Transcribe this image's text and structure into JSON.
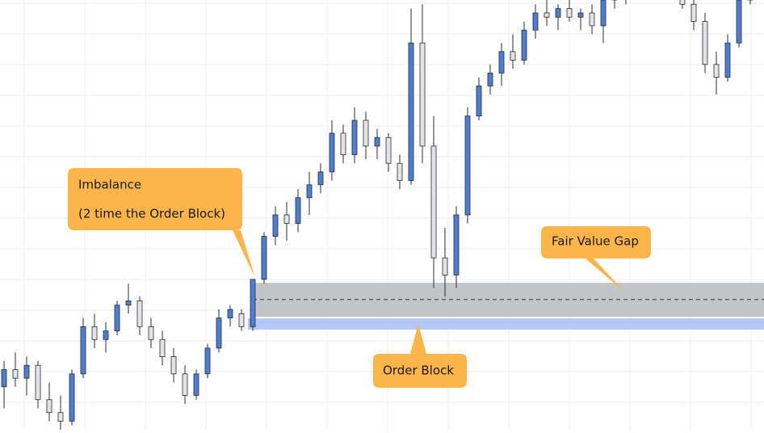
{
  "chart_data": {
    "type": "candlestick",
    "ylim": [
      0,
      100
    ],
    "grid": true,
    "up_color": "#4a7fd4",
    "down_color": "#e4e4e8",
    "candles": [
      [
        10,
        16,
        5,
        14
      ],
      [
        14,
        18,
        10,
        12
      ],
      [
        12,
        17,
        8,
        15
      ],
      [
        15,
        16,
        5,
        7
      ],
      [
        7,
        11,
        2,
        4
      ],
      [
        4,
        8,
        0,
        2
      ],
      [
        2,
        14,
        1,
        13
      ],
      [
        13,
        26,
        12,
        24
      ],
      [
        24,
        27,
        19,
        21
      ],
      [
        21,
        25,
        18,
        23
      ],
      [
        23,
        30,
        22,
        29
      ],
      [
        29,
        34,
        27,
        30
      ],
      [
        30,
        31,
        22,
        24
      ],
      [
        24,
        26,
        19,
        21
      ],
      [
        21,
        23,
        15,
        17
      ],
      [
        17,
        19,
        11,
        13
      ],
      [
        13,
        15,
        6,
        8
      ],
      [
        8,
        14,
        7,
        13
      ],
      [
        13,
        20,
        12,
        19
      ],
      [
        19,
        28,
        18,
        26
      ],
      [
        26,
        29,
        24,
        28
      ],
      [
        27,
        28,
        23,
        24
      ],
      [
        24,
        35,
        23,
        35
      ],
      [
        35,
        46,
        34,
        45
      ],
      [
        45,
        52,
        43,
        50
      ],
      [
        50,
        53,
        44,
        48
      ],
      [
        48,
        56,
        46,
        54
      ],
      [
        54,
        60,
        50,
        57
      ],
      [
        57,
        62,
        55,
        60
      ],
      [
        60,
        72,
        58,
        69
      ],
      [
        69,
        71,
        62,
        64
      ],
      [
        64,
        75,
        62,
        72
      ],
      [
        72,
        74,
        63,
        66
      ],
      [
        66,
        70,
        63,
        68
      ],
      [
        68,
        69,
        60,
        62
      ],
      [
        62,
        64,
        56,
        58
      ],
      [
        58,
        98,
        57,
        90
      ],
      [
        90,
        99,
        62,
        66
      ],
      [
        66,
        73,
        33,
        40
      ],
      [
        40,
        47,
        31,
        36
      ],
      [
        36,
        52,
        33,
        50
      ],
      [
        50,
        75,
        48,
        73
      ],
      [
        73,
        82,
        72,
        80
      ],
      [
        80,
        85,
        78,
        83
      ],
      [
        83,
        90,
        80,
        88
      ],
      [
        88,
        92,
        84,
        86
      ],
      [
        86,
        95,
        85,
        93
      ],
      [
        93,
        99,
        91,
        97
      ],
      [
        97,
        100,
        94,
        96
      ],
      [
        96,
        99,
        93,
        98
      ],
      [
        98,
        100,
        95,
        96
      ],
      [
        96,
        98,
        93,
        97
      ],
      [
        97,
        99,
        92,
        94
      ],
      [
        94,
        101,
        90,
        100
      ],
      [
        100,
        104,
        98,
        102
      ],
      [
        102,
        104,
        99,
        101
      ],
      [
        101,
        105,
        100,
        103
      ],
      [
        103,
        106,
        101,
        104
      ],
      [
        104,
        106,
        102,
        105
      ],
      [
        105,
        107,
        103,
        104
      ],
      [
        104,
        105,
        98,
        99
      ],
      [
        99,
        101,
        93,
        95
      ],
      [
        95,
        97,
        83,
        85
      ],
      [
        85,
        88,
        78,
        82
      ],
      [
        82,
        92,
        81,
        90
      ],
      [
        90,
        101,
        89,
        100
      ],
      [
        100,
        104,
        99,
        103
      ]
    ],
    "fair_value_gap": {
      "low": 26.3,
      "high": 34.2,
      "mid": 30.3,
      "color": "#c4c5c9"
    },
    "order_block": {
      "low": 23.3,
      "high": 25.9,
      "color": "#b4c6f8"
    },
    "annotations": [
      {
        "lines": [
          "Imbalance",
          "(2 time the Order Block)"
        ]
      },
      {
        "lines": [
          "Fair Value Gap"
        ]
      },
      {
        "lines": [
          "Order Block"
        ]
      }
    ]
  }
}
